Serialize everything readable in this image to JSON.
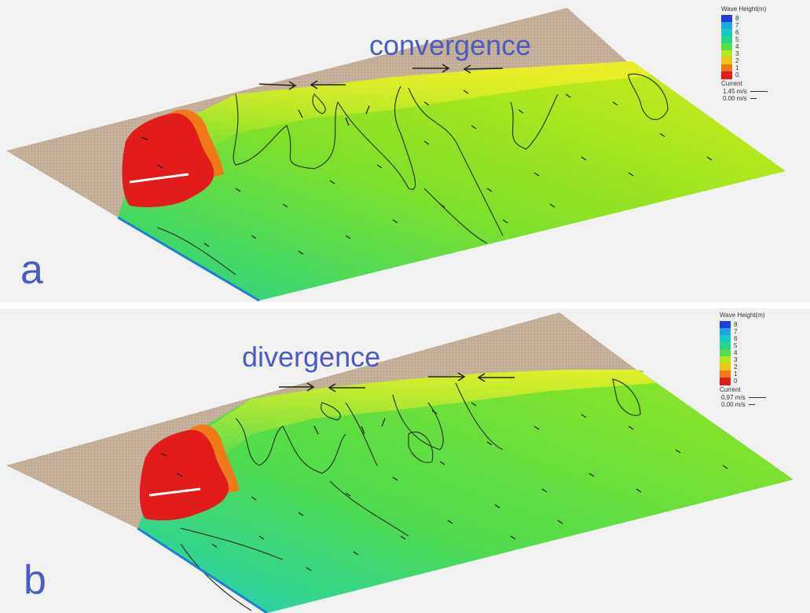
{
  "panels": [
    {
      "label": "a",
      "annotation": "convergence",
      "legend": {
        "title": "Wave Height(m)",
        "levels": [
          "8",
          "7",
          "6",
          "5",
          "4",
          "3",
          "2",
          "1",
          "0"
        ],
        "level_colors": [
          "#1f3fd6",
          "#1aa7e0",
          "#17c9c2",
          "#22d68c",
          "#55de47",
          "#b3e81f",
          "#f0c417",
          "#f07a18",
          "#e21b1b"
        ],
        "current_label": "Current",
        "current_max": "1.45 m/s",
        "current_min": "0.00 m/s"
      }
    },
    {
      "label": "b",
      "annotation": "divergence",
      "legend": {
        "title": "Wave Height(m)",
        "levels": [
          "8",
          "7",
          "6",
          "5",
          "4",
          "3",
          "2",
          "1",
          "0"
        ],
        "level_colors": [
          "#1f3fd6",
          "#1aa7e0",
          "#17c9c2",
          "#22d68c",
          "#55de47",
          "#b3e81f",
          "#f0c417",
          "#f07a18",
          "#e21b1b"
        ],
        "current_label": "Current",
        "current_max": "0.97 m/s",
        "current_min": "0.00 m/s"
      }
    }
  ],
  "colors": {
    "land": "#c4b09a",
    "annotation_text": "#4a5bc2",
    "high_wave": "#e21b1b"
  }
}
